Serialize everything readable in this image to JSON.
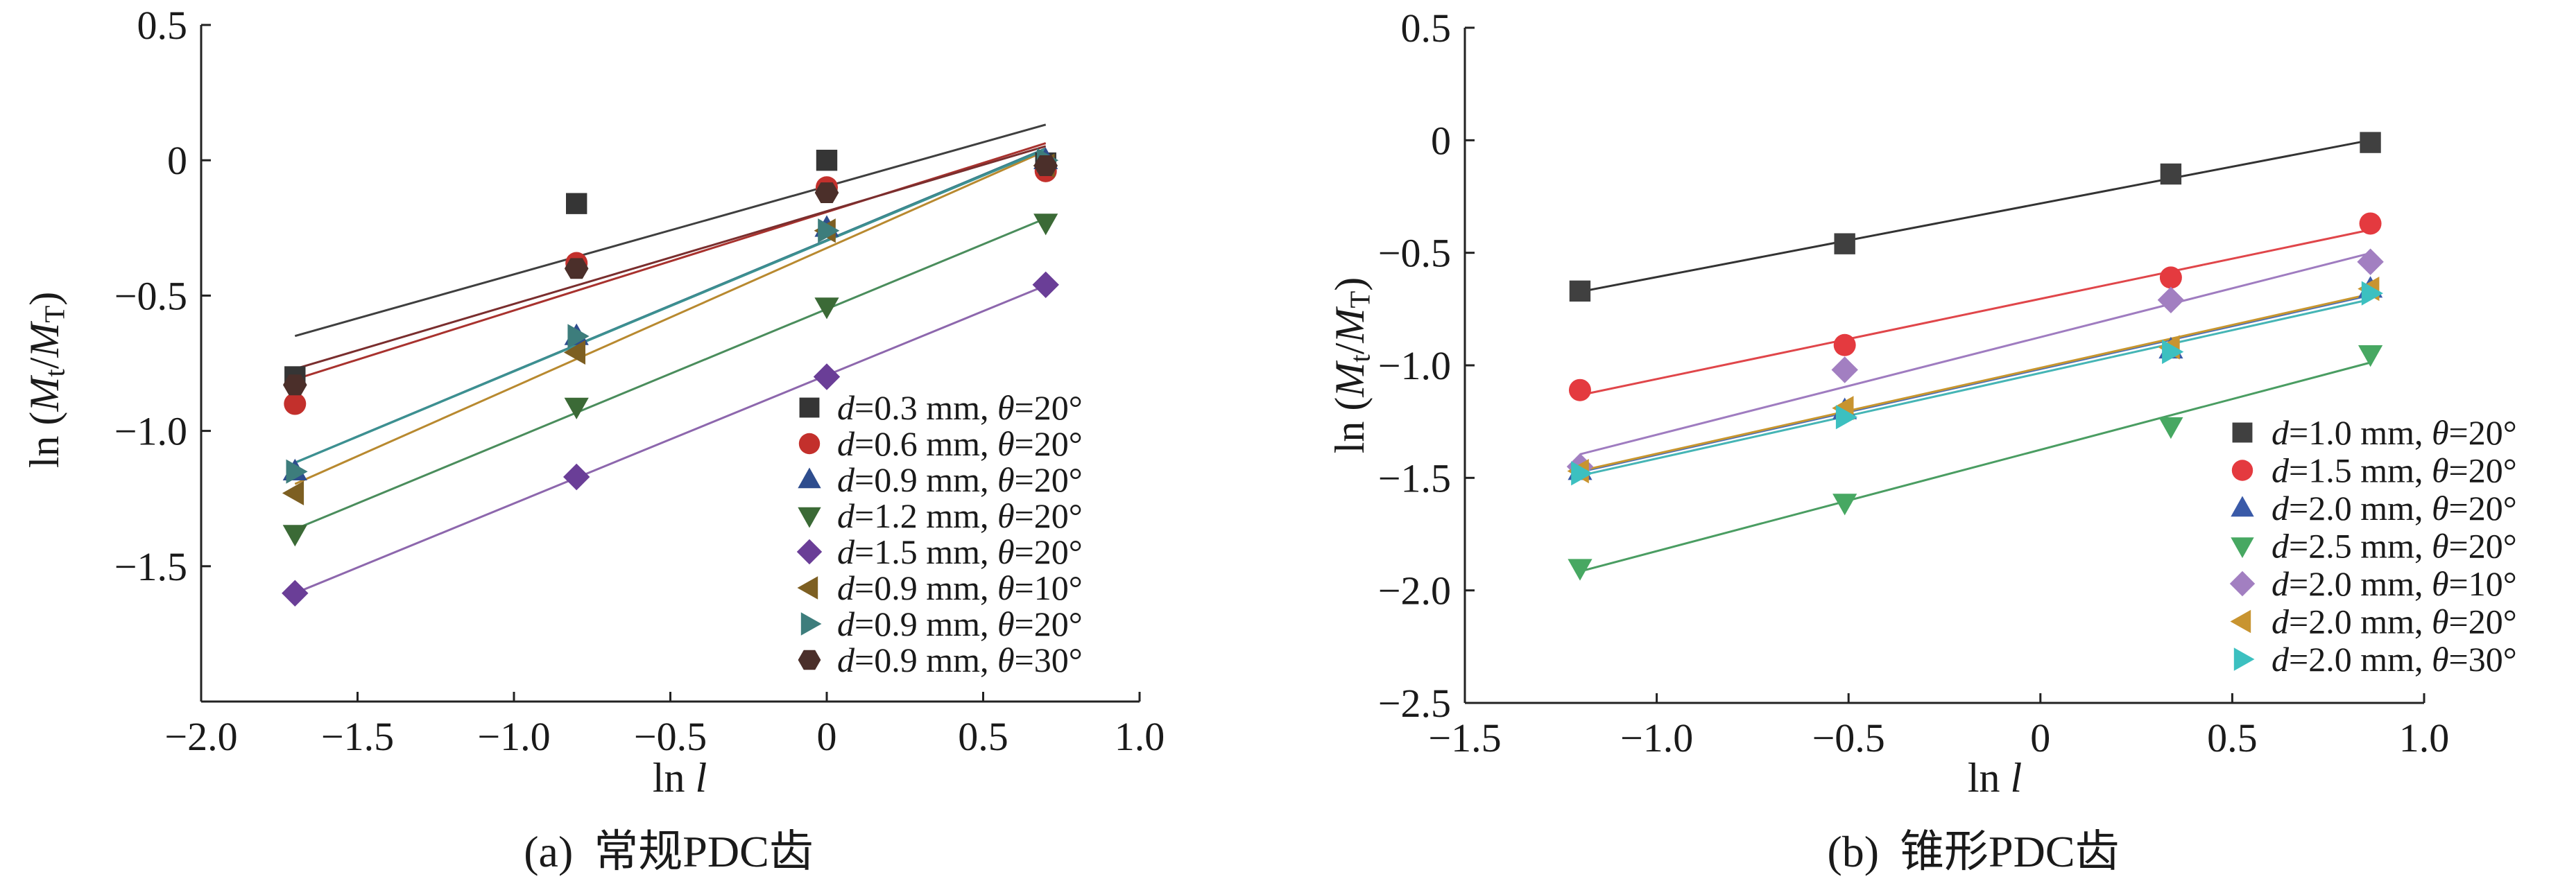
{
  "chart_data": [
    {
      "type": "scatter",
      "panel_label": "(a)",
      "caption": "常规PDC齿",
      "xlabel": [
        {
          "text": "ln "
        },
        {
          "text": "l",
          "italic": true
        }
      ],
      "ylabel": [
        {
          "text": "ln ("
        },
        {
          "text": "M",
          "italic": true
        },
        {
          "text": "t",
          "sub": true
        },
        {
          "text": "/"
        },
        {
          "text": "M",
          "italic": true
        },
        {
          "text": "T",
          "sub": true
        },
        {
          "text": ")"
        }
      ],
      "xlim": [
        -2.0,
        1.0
      ],
      "ylim": [
        -2.0,
        0.5
      ],
      "xticks": [
        -2.0,
        -1.5,
        -1.0,
        -0.5,
        0,
        0.5,
        1.0
      ],
      "xticklabels": [
        "−2.0",
        "−1.5",
        "−1.0",
        "−0.5",
        "0",
        "0.5",
        "1.0"
      ],
      "yticks": [
        0.5,
        0,
        -0.5,
        -1.0,
        -1.5
      ],
      "yticklabels": [
        "0.5",
        "0",
        "−0.5",
        "−1.0",
        "−1.5"
      ],
      "grid": false,
      "legend_position": "lower-right",
      "linear_fit": true,
      "series": [
        {
          "name": "d=0.3 mm, θ=20°",
          "marker": "square",
          "color": "#353535",
          "line_color": "#3f3f3f",
          "x": [
            -1.7,
            -0.8,
            0.0,
            0.7
          ],
          "y": [
            -0.8,
            -0.16,
            0.0,
            -0.01
          ]
        },
        {
          "name": "d=0.6 mm, θ=20°",
          "marker": "circle",
          "color": "#c3302c",
          "line_color": "#a8322e",
          "x": [
            -1.7,
            -0.8,
            0.0,
            0.7
          ],
          "y": [
            -0.9,
            -0.38,
            -0.1,
            -0.04
          ]
        },
        {
          "name": "d=0.9 mm, θ=20°",
          "marker": "triangle-up",
          "color": "#2e4d8e",
          "line_color": "#3a7d8a",
          "x": [
            -1.7,
            -0.8,
            0.0,
            0.7
          ],
          "y": [
            -1.15,
            -0.65,
            -0.25,
            0.0
          ]
        },
        {
          "name": "d=1.2 mm, θ=20°",
          "marker": "triangle-down",
          "color": "#3b6a36",
          "line_color": "#4a8d5c",
          "x": [
            -1.7,
            -0.8,
            0.0,
            0.7
          ],
          "y": [
            -1.38,
            -0.91,
            -0.54,
            -0.23
          ]
        },
        {
          "name": "d=1.5 mm, θ=20°",
          "marker": "diamond",
          "color": "#6a3e97",
          "line_color": "#8d67ad",
          "x": [
            -1.7,
            -0.8,
            0.0,
            0.7
          ],
          "y": [
            -1.6,
            -1.17,
            -0.8,
            -0.46
          ]
        },
        {
          "name": "d=0.9 mm, θ=10°",
          "marker": "triangle-left",
          "color": "#7d5f22",
          "line_color": "#b8892f",
          "x": [
            -1.7,
            -0.8,
            0.0,
            0.7
          ],
          "y": [
            -1.23,
            -0.71,
            -0.26,
            -0.02
          ]
        },
        {
          "name": "d=0.9 mm, θ=20°",
          "marker": "triangle-right",
          "color": "#3d7d7c",
          "line_color": "#3c9191",
          "x": [
            -1.7,
            -0.8,
            0.0,
            0.7
          ],
          "y": [
            -1.15,
            -0.65,
            -0.26,
            0.0
          ]
        },
        {
          "name": "d=0.9 mm, θ=30°",
          "marker": "hexagon",
          "color": "#4b2f2a",
          "line_color": "#7a2e2e",
          "x": [
            -1.7,
            -0.8,
            0.0,
            0.7
          ],
          "y": [
            -0.83,
            -0.4,
            -0.12,
            -0.02
          ]
        }
      ]
    },
    {
      "type": "scatter",
      "panel_label": "(b)",
      "caption": "锥形PDC齿",
      "xlabel": [
        {
          "text": "ln "
        },
        {
          "text": "l",
          "italic": true
        }
      ],
      "ylabel": [
        {
          "text": "ln ("
        },
        {
          "text": "M",
          "italic": true
        },
        {
          "text": "t",
          "sub": true
        },
        {
          "text": "/"
        },
        {
          "text": "M",
          "italic": true
        },
        {
          "text": "T",
          "sub": true
        },
        {
          "text": ")"
        }
      ],
      "xlim": [
        -1.5,
        1.0
      ],
      "ylim": [
        -2.5,
        0.5
      ],
      "xticks": [
        -1.5,
        -1.0,
        -0.5,
        0,
        0.5,
        1.0
      ],
      "xticklabels": [
        "−1.5",
        "−1.0",
        "−0.5",
        "0",
        "0.5",
        "1.0"
      ],
      "yticks": [
        0.5,
        0,
        -0.5,
        -1.0,
        -1.5,
        -2.0,
        -2.5
      ],
      "yticklabels": [
        "0.5",
        "0",
        "−0.5",
        "−1.0",
        "−1.5",
        "−2.0",
        "−2.5"
      ],
      "grid": false,
      "legend_position": "lower-right",
      "linear_fit": true,
      "series": [
        {
          "name": "d=1.0 mm, θ=20°",
          "marker": "square",
          "color": "#404040",
          "line_color": "#333333",
          "x": [
            -1.2,
            -0.51,
            0.34,
            0.86
          ],
          "y": [
            -0.67,
            -0.46,
            -0.15,
            -0.01
          ]
        },
        {
          "name": "d=1.5 mm, θ=20°",
          "marker": "circle",
          "color": "#e43a3f",
          "line_color": "#e0464a",
          "x": [
            -1.2,
            -0.51,
            0.34,
            0.86
          ],
          "y": [
            -1.11,
            -0.91,
            -0.61,
            -0.37
          ]
        },
        {
          "name": "d=2.0 mm, θ=20°",
          "marker": "triangle-up",
          "color": "#3a5aa8",
          "line_color": "#4a6fb8",
          "x": [
            -1.2,
            -0.51,
            0.34,
            0.86
          ],
          "y": [
            -1.47,
            -1.2,
            -0.93,
            -0.66
          ]
        },
        {
          "name": "d=2.5 mm, θ=20°",
          "marker": "triangle-down",
          "color": "#47a862",
          "line_color": "#4a9d62",
          "x": [
            -1.2,
            -0.51,
            0.34,
            0.86
          ],
          "y": [
            -1.9,
            -1.61,
            -1.27,
            -0.95
          ]
        },
        {
          "name": "d=2.0 mm, θ=10°",
          "marker": "diamond",
          "color": "#a27fc1",
          "line_color": "#9f7cc0",
          "x": [
            -1.2,
            -0.51,
            0.34,
            0.86
          ],
          "y": [
            -1.45,
            -1.02,
            -0.71,
            -0.54
          ]
        },
        {
          "name": "d=2.0 mm, θ=20°",
          "marker": "triangle-left",
          "color": "#c89430",
          "line_color": "#c8962e",
          "x": [
            -1.2,
            -0.51,
            0.34,
            0.86
          ],
          "y": [
            -1.47,
            -1.19,
            -0.92,
            -0.66
          ]
        },
        {
          "name": "d=2.0 mm, θ=30°",
          "marker": "triangle-right",
          "color": "#3cc0c0",
          "line_color": "#45b5b5",
          "x": [
            -1.2,
            -0.51,
            0.34,
            0.86
          ],
          "y": [
            -1.48,
            -1.23,
            -0.94,
            -0.68
          ]
        }
      ]
    }
  ]
}
